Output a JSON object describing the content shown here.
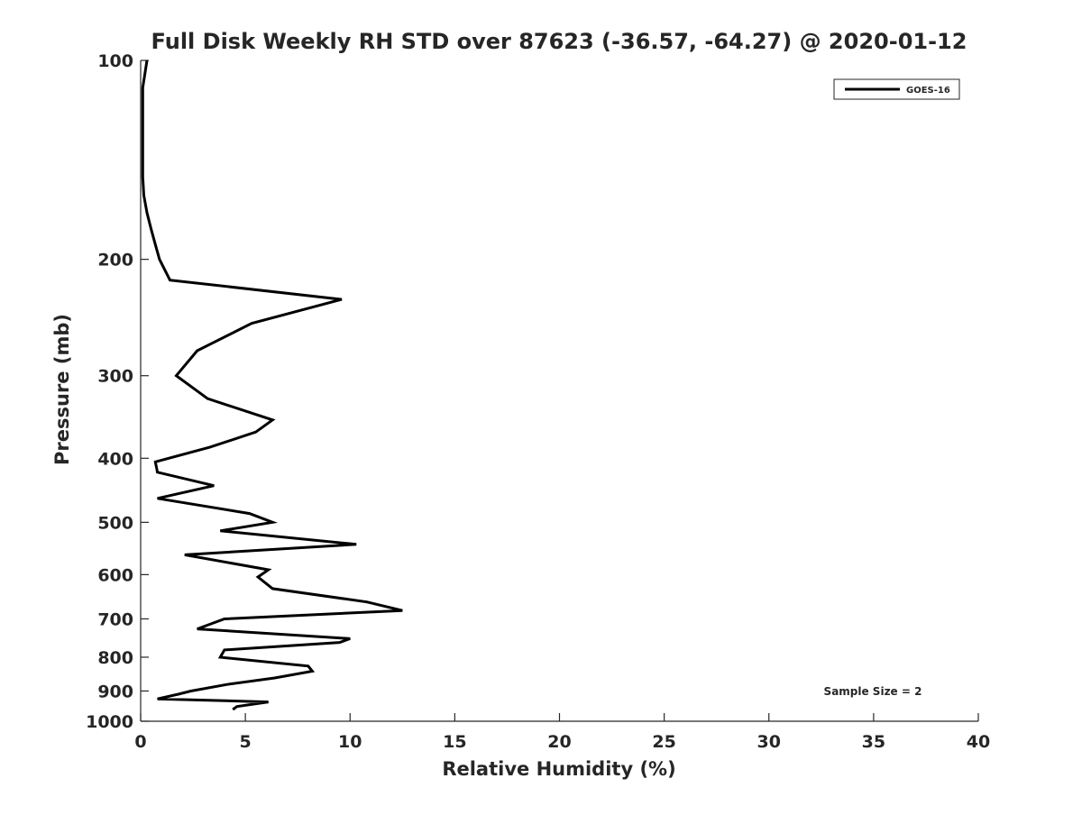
{
  "chart_data": {
    "type": "line",
    "title": "Full Disk Weekly RH STD over 87623 (-36.57, -64.27) @ 2020-01-12",
    "xlabel": "Relative Humidity (%)",
    "ylabel": "Pressure (mb)",
    "xlim": [
      0,
      40
    ],
    "ylim": [
      100,
      1000
    ],
    "y_scale": "log",
    "y_inverted": true,
    "x_ticks": [
      0,
      5,
      10,
      15,
      20,
      25,
      30,
      35,
      40
    ],
    "y_ticks": [
      100,
      200,
      300,
      400,
      500,
      600,
      700,
      800,
      900,
      1000
    ],
    "grid": false,
    "legend_position": "top-right",
    "series": [
      {
        "name": "GOES-16",
        "color": "#000000",
        "points": [
          [
            0.3,
            100
          ],
          [
            0.2,
            105
          ],
          [
            0.1,
            110
          ],
          [
            0.1,
            120
          ],
          [
            0.1,
            130
          ],
          [
            0.1,
            140
          ],
          [
            0.1,
            150
          ],
          [
            0.15,
            160
          ],
          [
            0.3,
            170
          ],
          [
            0.5,
            180
          ],
          [
            0.7,
            190
          ],
          [
            0.9,
            200
          ],
          [
            1.4,
            215
          ],
          [
            9.6,
            230
          ],
          [
            5.3,
            250
          ],
          [
            2.7,
            275
          ],
          [
            1.7,
            300
          ],
          [
            3.2,
            325
          ],
          [
            6.3,
            350
          ],
          [
            5.5,
            365
          ],
          [
            3.3,
            385
          ],
          [
            0.7,
            405
          ],
          [
            0.8,
            420
          ],
          [
            3.5,
            440
          ],
          [
            0.8,
            460
          ],
          [
            5.2,
            485
          ],
          [
            6.3,
            500
          ],
          [
            3.8,
            515
          ],
          [
            10.3,
            540
          ],
          [
            2.1,
            560
          ],
          [
            6.1,
            590
          ],
          [
            5.6,
            605
          ],
          [
            6.3,
            630
          ],
          [
            10.8,
            660
          ],
          [
            12.5,
            680
          ],
          [
            4.0,
            700
          ],
          [
            2.7,
            725
          ],
          [
            10.0,
            750
          ],
          [
            9.5,
            760
          ],
          [
            4.0,
            780
          ],
          [
            3.8,
            800
          ],
          [
            8.0,
            825
          ],
          [
            8.2,
            840
          ],
          [
            6.4,
            860
          ],
          [
            4.1,
            880
          ],
          [
            2.4,
            900
          ],
          [
            1.8,
            910
          ],
          [
            0.8,
            925
          ],
          [
            6.1,
            935
          ],
          [
            4.6,
            950
          ],
          [
            4.4,
            960
          ]
        ]
      }
    ],
    "annotations": [
      "Sample Size = 2"
    ]
  }
}
